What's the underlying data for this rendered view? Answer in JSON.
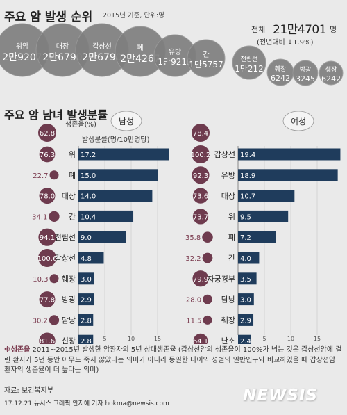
{
  "header": {
    "title": "주요 암 발생 순위",
    "note": "2015년 기준, 단위:명",
    "total_label": "전체",
    "total_value": "21만4701",
    "total_unit": "명",
    "total_change": "(전년대비 ↓1.9%)"
  },
  "ranking": [
    {
      "name": "위암",
      "count": "2만9207"
    },
    {
      "name": "대장",
      "count": "2만6790"
    },
    {
      "name": "갑상선",
      "count": "2만6790"
    },
    {
      "name": "폐",
      "count": "2만4267"
    },
    {
      "name": "유방",
      "count": "1만9219"
    },
    {
      "name": "간",
      "count": "1만5757"
    },
    {
      "name": "전립선",
      "count": "1만212"
    },
    {
      "name": "췌장",
      "count": "6242"
    },
    {
      "name": "방광",
      "count": "3245"
    },
    {
      "name": "췌장",
      "count": "6242"
    }
  ],
  "colors": {
    "bubble": "#7f7f7f",
    "bubble_stroke": "#999999",
    "maroon": "#6e3b4e",
    "bar": "#1f3c5c",
    "survival_text": "#7a3a4e"
  },
  "section2": {
    "title": "주요 암 남녀 발생분률",
    "survival_label": "생존율(%)",
    "incidence_label": "발생분률(명/10만명당)"
  },
  "chart_data": [
    {
      "type": "bar",
      "title": "남성",
      "categories": [
        "위",
        "폐",
        "대장",
        "간",
        "전립선",
        "갑상선",
        "췌장",
        "방광",
        "담낭",
        "신장"
      ],
      "values": [
        17.2,
        15.0,
        14.0,
        10.4,
        9.0,
        4.8,
        3.0,
        2.9,
        2.8,
        2.8
      ],
      "value_labels": [
        "17.2",
        "15.0",
        "14.0",
        "10.4",
        "9.0",
        "4.8",
        "3.0",
        "2.9",
        "2.8",
        "2.8"
      ],
      "survival": [
        "76.3",
        "22.7",
        "78.0",
        "34.1",
        "94.1",
        "100.6",
        "10.3",
        "77.8",
        "30.2",
        "81.6"
      ],
      "survival_overall": "62.8",
      "xticks": [
        "5",
        "10",
        "15"
      ],
      "xlim": [
        0,
        18
      ]
    },
    {
      "type": "bar",
      "title": "여성",
      "categories": [
        "갑상선",
        "유방",
        "대장",
        "위",
        "폐",
        "간",
        "자궁경부",
        "담낭",
        "췌장",
        "난소"
      ],
      "values": [
        19.4,
        18.9,
        10.7,
        9.5,
        7.2,
        4.0,
        3.5,
        3.0,
        2.9,
        2.4
      ],
      "value_labels": [
        "19.4",
        "18.9",
        "10.7",
        "9.5",
        "7.2",
        "4.0",
        "3.5",
        "3.0",
        "2.9",
        "2.4"
      ],
      "survival": [
        "100.2",
        "92.3",
        "73.6",
        "73.7",
        "35.8",
        "32.2",
        "79.9",
        "28.0",
        "11.5",
        "64.1"
      ],
      "survival_overall": "78.4",
      "xticks": [
        "5",
        "10",
        "15"
      ],
      "xlim": [
        0,
        18
      ]
    }
  ],
  "footnote": {
    "key": "※생존율",
    "text": " 2011~2015년 발생한 암환자의 5년 상대생존율 (갑상선암의 생존율이 100%가 넘는 것은 갑상선암에 걸린 환자가 5년 동안 아무도 죽지 않았다는 의미가 아니라 동일한 나이와 성별의 일반인구와 비교하였을 때 갑상선암 환자의 생존율이 더 높다는 의미)"
  },
  "source": "자료: 보건복지부",
  "credit": "17.12.21 뉴시스 그래픽 안지혜 기자 hokma@newsis.com",
  "logo": "NEWSIS"
}
